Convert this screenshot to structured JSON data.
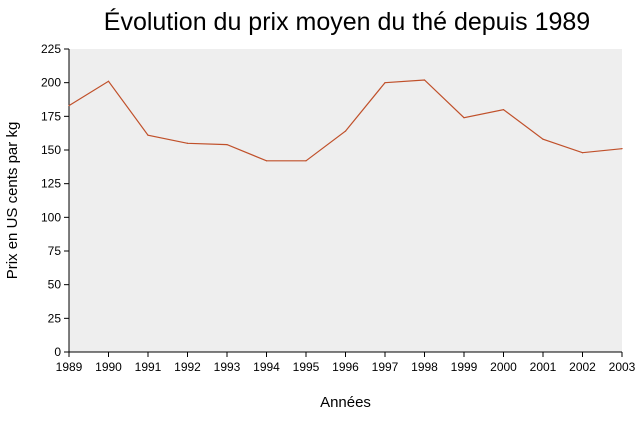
{
  "chart_data": {
    "type": "line",
    "title": "Évolution du prix moyen du thé depuis 1989",
    "xlabel": "Années",
    "ylabel": "Prix en US cents par kg",
    "x": [
      "1989",
      "1990",
      "1991",
      "1992",
      "1993",
      "1994",
      "1995",
      "1996",
      "1997",
      "1998",
      "1999",
      "2000",
      "2001",
      "2002",
      "2003"
    ],
    "series": [
      {
        "values": [
          183,
          201,
          161,
          155,
          154,
          142,
          142,
          164,
          200,
          202,
          174,
          180,
          158,
          148,
          151
        ]
      }
    ],
    "ylim": [
      0,
      225
    ],
    "yticks": [
      0,
      25,
      50,
      75,
      100,
      125,
      150,
      175,
      200,
      225
    ],
    "grid": false,
    "plot_background": "#eeeeee",
    "line_color": "#c0502a"
  }
}
